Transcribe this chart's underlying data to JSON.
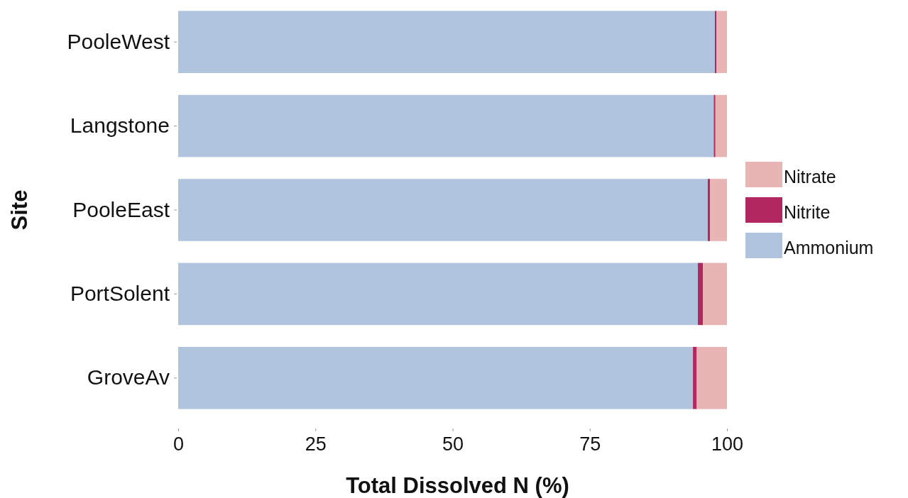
{
  "chart_data": {
    "type": "bar",
    "orientation": "horizontal",
    "stacked": true,
    "xlabel": "Total Dissolved N (%)",
    "ylabel": "Site",
    "categories": [
      "PooleWest",
      "Langstone",
      "PooleEast",
      "PortSolent",
      "GroveAv"
    ],
    "series": [
      {
        "name": "Ammonium",
        "color": "#b0c4de",
        "values": [
          97.8,
          97.6,
          96.5,
          94.7,
          93.8
        ]
      },
      {
        "name": "Nitrite",
        "color": "#b0285f",
        "values": [
          0.3,
          0.3,
          0.4,
          0.9,
          0.7
        ]
      },
      {
        "name": "Nitrate",
        "color": "#e8b4b4",
        "values": [
          1.9,
          2.1,
          3.1,
          4.4,
          5.5
        ]
      }
    ],
    "xlim": [
      0,
      100
    ],
    "xticks": [
      0,
      25,
      50,
      75,
      100
    ],
    "legend": "right"
  }
}
